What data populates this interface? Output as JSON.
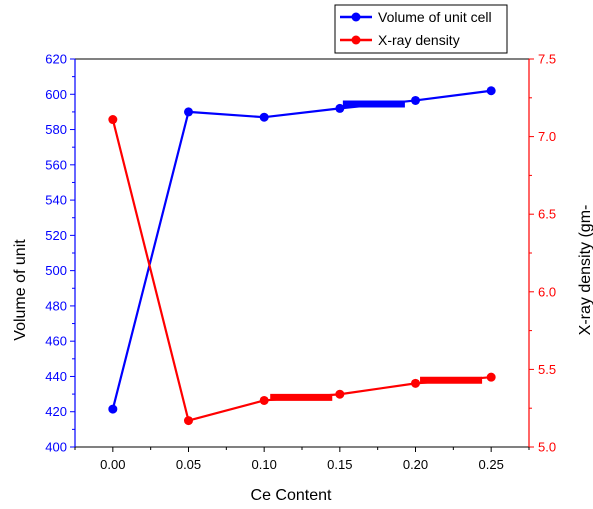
{
  "chart_data": {
    "type": "line",
    "x": [
      0.0,
      0.05,
      0.1,
      0.15,
      0.2,
      0.25
    ],
    "x_tick_labels": [
      "0.00",
      "0.05",
      "0.10",
      "0.15",
      "0.20",
      "0.25"
    ],
    "xlabel": "Ce Content",
    "xlim": [
      -0.025,
      0.275
    ],
    "left_axis": {
      "label": "Volume of unit",
      "lim": [
        400,
        620
      ],
      "ticks": [
        "400",
        "420",
        "440",
        "460",
        "480",
        "500",
        "520",
        "540",
        "560",
        "580",
        "600",
        "620"
      ],
      "color": "#0000ff"
    },
    "right_axis": {
      "label": "X-ray density (gm-",
      "lim": [
        5.0,
        7.5
      ],
      "ticks": [
        "5.0",
        "5.5",
        "6.0",
        "6.5",
        "7.0",
        "7.5"
      ],
      "color": "#ff0000"
    },
    "series": [
      {
        "name": "Volume of unit cell",
        "axis": "left",
        "color": "#0000ff",
        "values": [
          421.5,
          590.0,
          587.0,
          592.0,
          596.5,
          602.0
        ],
        "thick_segment": {
          "from": 0.152,
          "to": 0.193,
          "value": 594.5
        }
      },
      {
        "name": "X-ray density",
        "axis": "right",
        "color": "#ff0000",
        "values": [
          7.11,
          5.17,
          5.3,
          5.34,
          5.41,
          5.45
        ],
        "thick_segment": [
          {
            "from": 0.104,
            "to": 0.145,
            "value": 5.32
          },
          {
            "from": 0.203,
            "to": 0.244,
            "value": 5.43
          }
        ]
      }
    ],
    "legend_position": "top-right",
    "grid": false
  }
}
